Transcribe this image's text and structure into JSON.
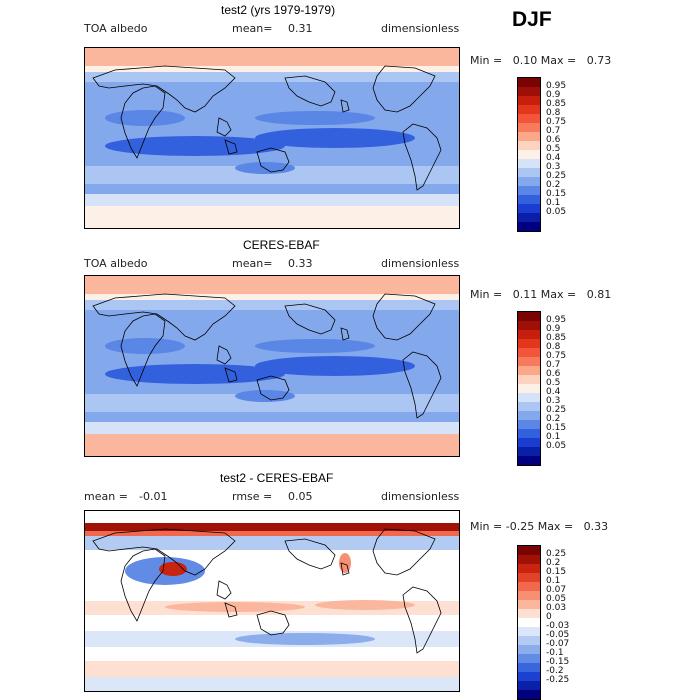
{
  "season": "DJF",
  "panels": [
    {
      "title": "test2 (yrs 1979-1979)",
      "left_label": "TOA albedo",
      "mean_label": "mean=",
      "mean_value": "0.31",
      "units": "dimensionless",
      "min_label": "Min =",
      "min_value": "0.10",
      "max_label": "Max =",
      "max_value": "0.73",
      "colorbar": {
        "labels": [
          "0.95",
          "0.9",
          "0.85",
          "0.8",
          "0.75",
          "0.7",
          "0.6",
          "0.5",
          "0.4",
          "0.3",
          "0.25",
          "0.2",
          "0.15",
          "0.1",
          "0.05"
        ],
        "colors": [
          "#7a0403",
          "#9e0f07",
          "#c71f0d",
          "#e2361d",
          "#f2553a",
          "#f77a5c",
          "#fba889",
          "#fdd3bf",
          "#fdf0e6",
          "#d5e2f7",
          "#abc6f2",
          "#84a8ec",
          "#5a86e6",
          "#3361dd",
          "#1a3ccf",
          "#0a1fa8",
          "#000080"
        ]
      }
    },
    {
      "title": "CERES-EBAF",
      "left_label": "TOA albedo",
      "mean_label": "mean=",
      "mean_value": "0.33",
      "units": "dimensionless",
      "min_label": "Min =",
      "min_value": "0.11",
      "max_label": "Max =",
      "max_value": "0.81",
      "colorbar": {
        "labels": [
          "0.95",
          "0.9",
          "0.85",
          "0.8",
          "0.75",
          "0.7",
          "0.6",
          "0.5",
          "0.4",
          "0.3",
          "0.25",
          "0.2",
          "0.15",
          "0.1",
          "0.05"
        ],
        "colors": [
          "#7a0403",
          "#9e0f07",
          "#c71f0d",
          "#e2361d",
          "#f2553a",
          "#f77a5c",
          "#fba889",
          "#fdd3bf",
          "#fdf0e6",
          "#d5e2f7",
          "#abc6f2",
          "#84a8ec",
          "#5a86e6",
          "#3361dd",
          "#1a3ccf",
          "#0a1fa8",
          "#000080"
        ]
      }
    },
    {
      "title": "test2 - CERES-EBAF",
      "left_label": "mean =",
      "mean_label": "rmse =",
      "left_value": "-0.01",
      "mean_value": "0.05",
      "units": "dimensionless",
      "min_label": "Min =",
      "min_value": "-0.25",
      "max_label": "Max =",
      "max_value": "0.33",
      "colorbar": {
        "labels": [
          "0.25",
          "0.2",
          "0.15",
          "0.1",
          "0.07",
          "0.05",
          "0.03",
          "0",
          "-0.03",
          "-0.05",
          "-0.07",
          "-0.1",
          "-0.15",
          "-0.2",
          "-0.25"
        ],
        "colors": [
          "#7a0403",
          "#a11206",
          "#c8240f",
          "#e24228",
          "#f2684c",
          "#f78f72",
          "#fbb79d",
          "#fde0d2",
          "#ffffff",
          "#dbe6f8",
          "#b3cbf3",
          "#8cadec",
          "#628be6",
          "#3a66dd",
          "#1c40cf",
          "#0b20a8",
          "#000080"
        ]
      }
    }
  ],
  "chart_data": [
    {
      "type": "heatmap",
      "title": "test2 (yrs 1979-1979)",
      "variable": "TOA albedo",
      "units": "dimensionless",
      "season": "DJF",
      "mean": 0.31,
      "min": 0.1,
      "max": 0.73,
      "contour_levels": [
        0.05,
        0.1,
        0.15,
        0.2,
        0.25,
        0.3,
        0.4,
        0.5,
        0.6,
        0.7,
        0.75,
        0.8,
        0.85,
        0.9,
        0.95
      ]
    },
    {
      "type": "heatmap",
      "title": "CERES-EBAF",
      "variable": "TOA albedo",
      "units": "dimensionless",
      "season": "DJF",
      "mean": 0.33,
      "min": 0.11,
      "max": 0.81,
      "contour_levels": [
        0.05,
        0.1,
        0.15,
        0.2,
        0.25,
        0.3,
        0.4,
        0.5,
        0.6,
        0.7,
        0.75,
        0.8,
        0.85,
        0.9,
        0.95
      ]
    },
    {
      "type": "heatmap",
      "title": "test2 - CERES-EBAF",
      "units": "dimensionless",
      "season": "DJF",
      "mean": -0.01,
      "rmse": 0.05,
      "min": -0.25,
      "max": 0.33,
      "contour_levels": [
        -0.25,
        -0.2,
        -0.15,
        -0.1,
        -0.07,
        -0.05,
        -0.03,
        0,
        0.03,
        0.05,
        0.07,
        0.1,
        0.15,
        0.2,
        0.25
      ]
    }
  ]
}
